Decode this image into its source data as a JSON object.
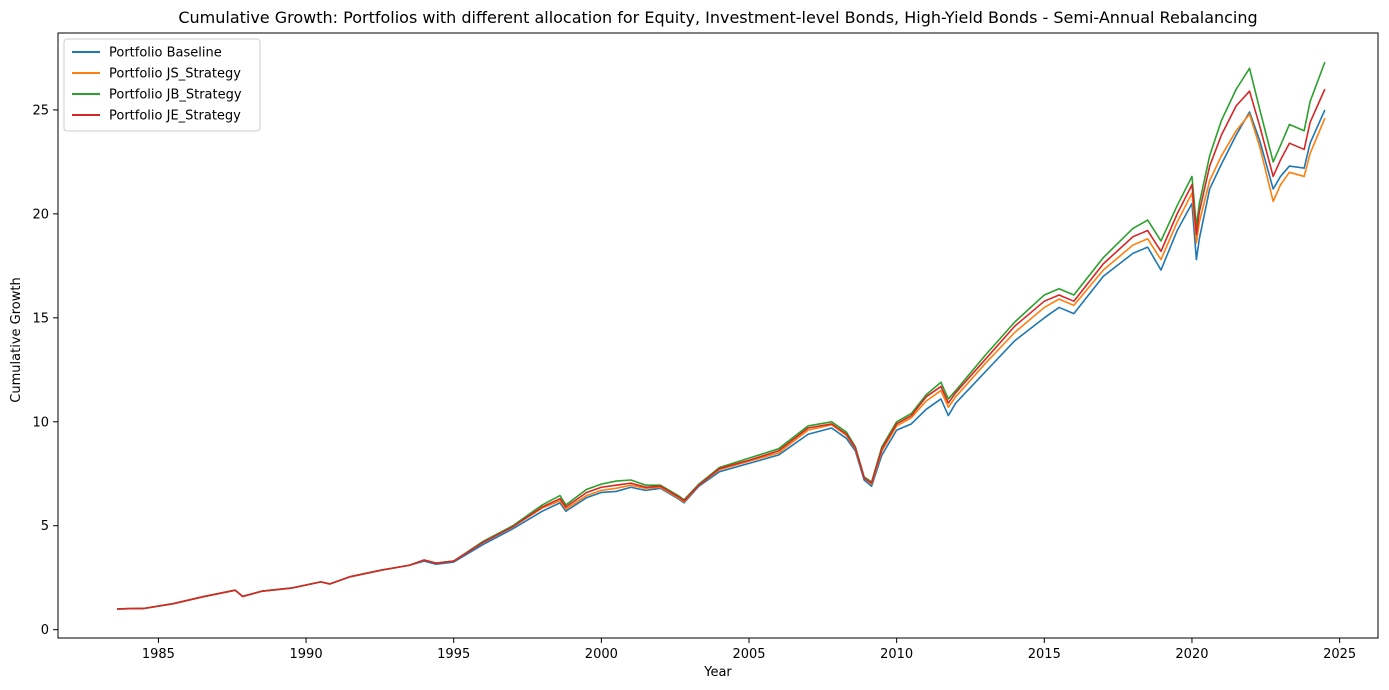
{
  "chart_data": {
    "type": "line",
    "title": "Cumulative Growth: Portfolios with different allocation for Equity, Investment-level Bonds, High-Yield Bonds - Semi-Annual Rebalancing",
    "xlabel": "Year",
    "ylabel": "Cumulative Growth",
    "xlim": [
      1981.6,
      2026.3
    ],
    "ylim": [
      -0.4,
      28.7
    ],
    "xticks": [
      1985,
      1990,
      1995,
      2000,
      2005,
      2010,
      2015,
      2020,
      2025
    ],
    "yticks": [
      0,
      5,
      10,
      15,
      20,
      25
    ],
    "grid": false,
    "legend_position": "upper-left",
    "x": [
      1983.6,
      1984.5,
      1985.5,
      1986.5,
      1987.6,
      1987.85,
      1988.5,
      1989.5,
      1990.5,
      1990.8,
      1991.5,
      1992.5,
      1993.5,
      1994.0,
      1994.4,
      1995.0,
      1996.0,
      1997.0,
      1998.0,
      1998.6,
      1998.8,
      1999.5,
      2000.0,
      2000.5,
      2001.0,
      2001.5,
      2002.0,
      2002.6,
      2002.8,
      2003.3,
      2004.0,
      2005.0,
      2006.0,
      2007.0,
      2007.8,
      2008.3,
      2008.6,
      2008.9,
      2009.15,
      2009.5,
      2010.0,
      2010.5,
      2011.0,
      2011.5,
      2011.75,
      2012.0,
      2013.0,
      2014.0,
      2015.0,
      2015.5,
      2016.0,
      2017.0,
      2018.0,
      2018.5,
      2018.95,
      2019.5,
      2020.0,
      2020.15,
      2020.25,
      2020.6,
      2021.0,
      2021.5,
      2021.95,
      2022.3,
      2022.75,
      2023.0,
      2023.3,
      2023.8,
      2024.0,
      2024.5
    ],
    "series": [
      {
        "name": "Portfolio Baseline",
        "color": "#1f77b4",
        "values": [
          1.0,
          1.02,
          1.25,
          1.58,
          1.9,
          1.6,
          1.85,
          2.0,
          2.3,
          2.2,
          2.55,
          2.85,
          3.1,
          3.3,
          3.15,
          3.25,
          4.1,
          4.85,
          5.7,
          6.1,
          5.7,
          6.35,
          6.6,
          6.65,
          6.85,
          6.7,
          6.8,
          6.3,
          6.1,
          6.9,
          7.6,
          8.0,
          8.4,
          9.4,
          9.7,
          9.2,
          8.6,
          7.2,
          6.9,
          8.4,
          9.6,
          9.9,
          10.6,
          11.1,
          10.3,
          10.9,
          12.4,
          13.9,
          15.0,
          15.5,
          15.2,
          17.0,
          18.1,
          18.4,
          17.3,
          19.2,
          20.5,
          17.8,
          18.8,
          21.2,
          22.4,
          23.8,
          24.9,
          23.5,
          21.2,
          21.8,
          22.3,
          22.2,
          23.4,
          25.0
        ]
      },
      {
        "name": "Portfolio JS_Strategy",
        "color": "#ff7f0e",
        "values": [
          1.0,
          1.02,
          1.25,
          1.58,
          1.9,
          1.6,
          1.85,
          2.0,
          2.3,
          2.2,
          2.55,
          2.85,
          3.1,
          3.35,
          3.2,
          3.3,
          4.2,
          4.95,
          5.85,
          6.2,
          5.8,
          6.45,
          6.7,
          6.8,
          6.95,
          6.8,
          6.85,
          6.35,
          6.15,
          6.95,
          7.7,
          8.1,
          8.5,
          9.6,
          9.85,
          9.35,
          8.7,
          7.3,
          7.0,
          8.6,
          9.8,
          10.2,
          11.0,
          11.5,
          10.7,
          11.2,
          12.8,
          14.3,
          15.5,
          15.9,
          15.6,
          17.3,
          18.5,
          18.8,
          17.8,
          19.6,
          21.0,
          18.6,
          19.6,
          21.6,
          22.8,
          24.0,
          24.8,
          23.2,
          20.6,
          21.4,
          22.0,
          21.8,
          22.9,
          24.6
        ]
      },
      {
        "name": "Portfolio JB_Strategy",
        "color": "#2ca02c",
        "values": [
          1.0,
          1.02,
          1.25,
          1.58,
          1.9,
          1.6,
          1.85,
          2.0,
          2.3,
          2.2,
          2.55,
          2.85,
          3.1,
          3.35,
          3.2,
          3.3,
          4.25,
          5.0,
          6.0,
          6.45,
          6.0,
          6.75,
          7.0,
          7.15,
          7.2,
          6.95,
          6.95,
          6.45,
          6.25,
          7.0,
          7.8,
          8.25,
          8.7,
          9.8,
          10.0,
          9.5,
          8.8,
          7.35,
          7.1,
          8.8,
          10.0,
          10.4,
          11.3,
          11.9,
          11.1,
          11.5,
          13.2,
          14.8,
          16.1,
          16.4,
          16.1,
          17.9,
          19.3,
          19.7,
          18.7,
          20.4,
          21.8,
          19.4,
          20.5,
          22.8,
          24.5,
          26.0,
          27.0,
          25.0,
          22.5,
          23.3,
          24.3,
          24.0,
          25.4,
          27.3
        ]
      },
      {
        "name": "Portfolio JE_Strategy",
        "color": "#d62728",
        "values": [
          1.0,
          1.02,
          1.25,
          1.58,
          1.9,
          1.6,
          1.85,
          2.0,
          2.3,
          2.2,
          2.55,
          2.85,
          3.1,
          3.35,
          3.2,
          3.3,
          4.2,
          4.95,
          5.9,
          6.3,
          5.9,
          6.6,
          6.85,
          6.95,
          7.05,
          6.85,
          6.9,
          6.4,
          6.2,
          6.95,
          7.75,
          8.15,
          8.6,
          9.7,
          9.9,
          9.4,
          8.75,
          7.3,
          7.05,
          8.7,
          9.9,
          10.3,
          11.2,
          11.7,
          10.9,
          11.4,
          13.0,
          14.6,
          15.8,
          16.1,
          15.8,
          17.6,
          18.9,
          19.2,
          18.2,
          20.0,
          21.4,
          19.0,
          20.1,
          22.3,
          23.8,
          25.2,
          25.9,
          24.2,
          21.8,
          22.6,
          23.4,
          23.1,
          24.4,
          26.0
        ]
      }
    ]
  }
}
